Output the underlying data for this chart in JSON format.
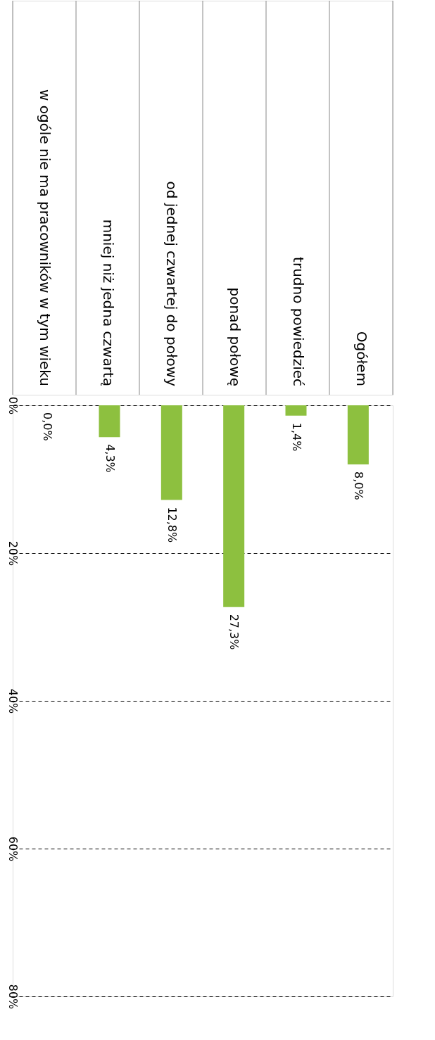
{
  "chart_data": {
    "type": "bar",
    "categories": [
      "w ogóle nie ma pracowników w tym wieku",
      "mniej niż jedna czwartą",
      "od jednej czwartej do połowy",
      "ponad połowę",
      "trudno powiedzieć",
      "Ogółem"
    ],
    "values": [
      0.0,
      4.3,
      12.8,
      27.3,
      1.4,
      8.0
    ],
    "value_labels": [
      "0,0%",
      "4,3%",
      "12,8%",
      "27,3%",
      "1,4%",
      "8,0%"
    ],
    "color": "#8dc03f",
    "ylim": [
      80,
      0
    ],
    "yticks": [
      {
        "value": 0,
        "label": "0%"
      },
      {
        "value": 20,
        "label": "20%"
      },
      {
        "value": 40,
        "label": "40%"
      },
      {
        "value": 60,
        "label": "60%"
      },
      {
        "value": 80,
        "label": "80%"
      }
    ],
    "grid": "y"
  }
}
